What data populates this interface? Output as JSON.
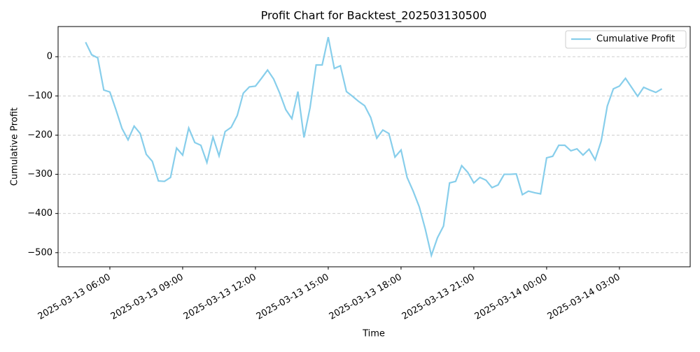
{
  "chart_data": {
    "type": "line",
    "title": "Profit Chart for Backtest_202503130500",
    "x_label": "Time",
    "y_label": "Cumulative Profit",
    "x": [
      "2025-03-13 05:00",
      "2025-03-13 05:15",
      "2025-03-13 05:30",
      "2025-03-13 05:45",
      "2025-03-13 06:00",
      "2025-03-13 06:15",
      "2025-03-13 06:30",
      "2025-03-13 06:45",
      "2025-03-13 07:00",
      "2025-03-13 07:15",
      "2025-03-13 07:30",
      "2025-03-13 07:45",
      "2025-03-13 08:00",
      "2025-03-13 08:15",
      "2025-03-13 08:30",
      "2025-03-13 08:45",
      "2025-03-13 09:00",
      "2025-03-13 09:15",
      "2025-03-13 09:30",
      "2025-03-13 09:45",
      "2025-03-13 10:00",
      "2025-03-13 10:15",
      "2025-03-13 10:30",
      "2025-03-13 10:45",
      "2025-03-13 11:00",
      "2025-03-13 11:15",
      "2025-03-13 11:30",
      "2025-03-13 11:45",
      "2025-03-13 12:00",
      "2025-03-13 12:15",
      "2025-03-13 12:30",
      "2025-03-13 12:45",
      "2025-03-13 13:00",
      "2025-03-13 13:15",
      "2025-03-13 13:30",
      "2025-03-13 13:45",
      "2025-03-13 14:00",
      "2025-03-13 14:15",
      "2025-03-13 14:30",
      "2025-03-13 14:45",
      "2025-03-13 15:00",
      "2025-03-13 15:15",
      "2025-03-13 15:30",
      "2025-03-13 15:45",
      "2025-03-13 16:00",
      "2025-03-13 16:15",
      "2025-03-13 16:30",
      "2025-03-13 16:45",
      "2025-03-13 17:00",
      "2025-03-13 17:15",
      "2025-03-13 17:30",
      "2025-03-13 17:45",
      "2025-03-13 18:00",
      "2025-03-13 18:15",
      "2025-03-13 18:30",
      "2025-03-13 18:45",
      "2025-03-13 19:00",
      "2025-03-13 19:15",
      "2025-03-13 19:30",
      "2025-03-13 19:45",
      "2025-03-13 20:00",
      "2025-03-13 20:15",
      "2025-03-13 20:30",
      "2025-03-13 20:45",
      "2025-03-13 21:00",
      "2025-03-13 21:15",
      "2025-03-13 21:30",
      "2025-03-13 21:45",
      "2025-03-13 22:00",
      "2025-03-13 22:15",
      "2025-03-13 22:30",
      "2025-03-13 22:45",
      "2025-03-13 23:00",
      "2025-03-13 23:15",
      "2025-03-13 23:30",
      "2025-03-13 23:45",
      "2025-03-14 00:00",
      "2025-03-14 00:15",
      "2025-03-14 00:30",
      "2025-03-14 00:45",
      "2025-03-14 01:00",
      "2025-03-14 01:15",
      "2025-03-14 01:30",
      "2025-03-14 01:45",
      "2025-03-14 02:00",
      "2025-03-14 02:15",
      "2025-03-14 02:30",
      "2025-03-14 02:45",
      "2025-03-14 03:00",
      "2025-03-14 03:15",
      "2025-03-14 03:30",
      "2025-03-14 03:45",
      "2025-03-14 04:00",
      "2025-03-14 04:15",
      "2025-03-14 04:30",
      "2025-03-14 04:45"
    ],
    "series": [
      {
        "name": "Cumulative Profit",
        "color": "#87ceeb",
        "values": [
          37,
          5,
          -3,
          -85,
          -90,
          -135,
          -183,
          -212,
          -177,
          -196,
          -249,
          -267,
          -317,
          -318,
          -308,
          -233,
          -251,
          -182,
          -219,
          -226,
          -270,
          -205,
          -253,
          -191,
          -180,
          -150,
          -93,
          -77,
          -75,
          -55,
          -34,
          -57,
          -93,
          -135,
          -158,
          -89,
          -206,
          -130,
          -21,
          -21,
          50,
          -30,
          -23,
          -89,
          -101,
          -114,
          -125,
          -155,
          -208,
          -187,
          -196,
          -256,
          -238,
          -308,
          -343,
          -383,
          -440,
          -507,
          -462,
          -432,
          -322,
          -318,
          -278,
          -295,
          -322,
          -308,
          -315,
          -334,
          -327,
          -300,
          -300,
          -299,
          -352,
          -343,
          -347,
          -350,
          -258,
          -254,
          -226,
          -226,
          -240,
          -235,
          -251,
          -236,
          -263,
          -215,
          -126,
          -82,
          -75,
          -55,
          -78,
          -101,
          -78,
          -85,
          -91,
          -82
        ]
      }
    ],
    "xlim": [
      "2025-03-13 03:52",
      "2025-03-14 05:55"
    ],
    "xticks": [
      "2025-03-13 06:00",
      "2025-03-13 09:00",
      "2025-03-13 12:00",
      "2025-03-13 15:00",
      "2025-03-13 18:00",
      "2025-03-13 21:00",
      "2025-03-14 00:00",
      "2025-03-14 03:00"
    ],
    "ylim": [
      -536,
      77
    ],
    "yticks": [
      {
        "value": -500,
        "label": "−500"
      },
      {
        "value": -400,
        "label": "−400"
      },
      {
        "value": -300,
        "label": "−300"
      },
      {
        "value": -200,
        "label": "−200"
      },
      {
        "value": -100,
        "label": "−100"
      },
      0
    ],
    "grid": "y",
    "legend": "upper right"
  }
}
